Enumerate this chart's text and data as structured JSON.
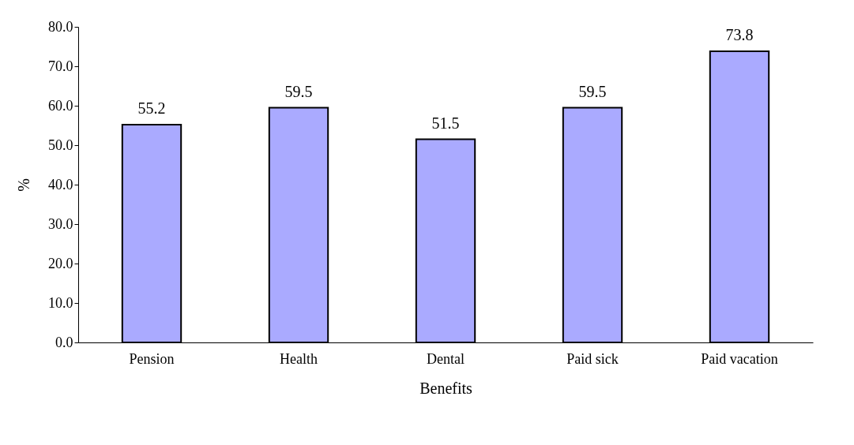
{
  "chart_data": {
    "type": "bar",
    "xlabel": "Benefits",
    "ylabel": "%",
    "categories": [
      "Pension",
      "Health",
      "Dental",
      "Paid sick",
      "Paid vacation"
    ],
    "values": [
      55.2,
      59.5,
      51.5,
      59.5,
      73.8
    ],
    "color": "#aaaaff",
    "ylim": [
      0,
      80
    ],
    "yticks": [
      {
        "value": 0,
        "label": "0.0"
      },
      {
        "value": 10,
        "label": "10.0"
      },
      {
        "value": 20,
        "label": "20.0"
      },
      {
        "value": 30,
        "label": "30.0"
      },
      {
        "value": 40,
        "label": "40.0"
      },
      {
        "value": 50,
        "label": "50.0"
      },
      {
        "value": 60,
        "label": "60.0"
      },
      {
        "value": 70,
        "label": "70.0"
      },
      {
        "value": 80,
        "label": "80.0"
      }
    ],
    "data_labels": true,
    "grid": false
  }
}
